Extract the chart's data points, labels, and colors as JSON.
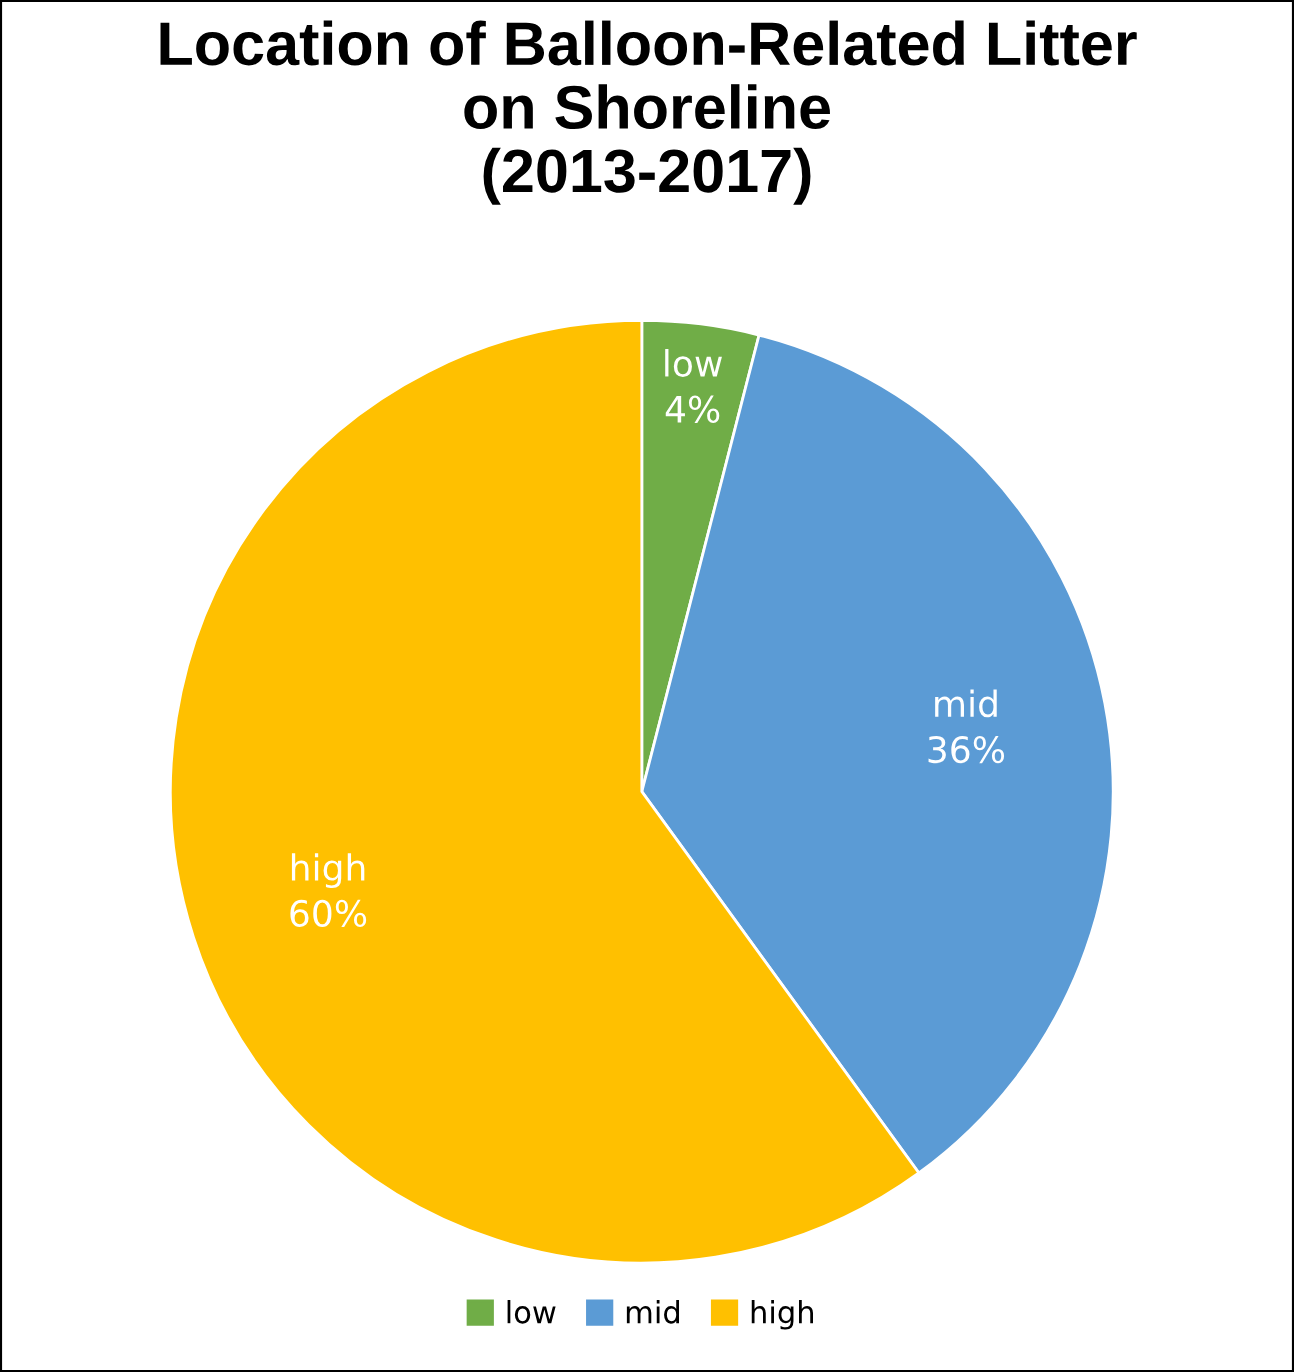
{
  "chart_data": {
    "type": "pie",
    "title": "Location of Balloon-Related Litter\non Shoreline\n(2013-2017)",
    "categories": [
      "low",
      "mid",
      "high"
    ],
    "values": [
      4,
      36,
      60
    ],
    "colors": [
      "#70ad47",
      "#5b9bd5",
      "#ffc000"
    ],
    "value_labels": [
      "4%",
      "36%",
      "60%"
    ],
    "legend": "bottom"
  }
}
